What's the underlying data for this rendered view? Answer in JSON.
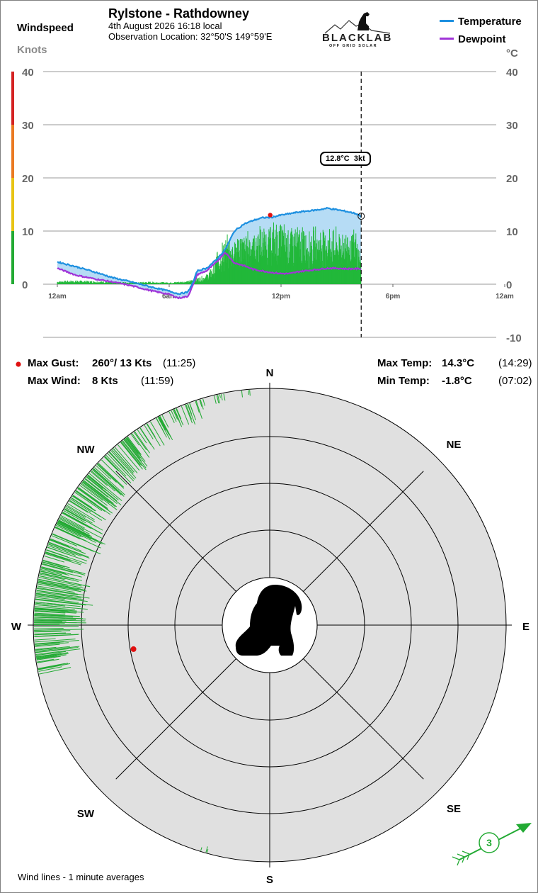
{
  "header": {
    "windspeed_label": "Windspeed",
    "units_label": "Knots",
    "station": "Rylstone - Rathdowney",
    "datetime": "4th August 2026  16:18 local",
    "location": "Observation Location: 32°50'S 149°59'E",
    "logo_text": "BLACKLAB",
    "logo_sub": "OFF GRID SOLAR",
    "celsius_label": "°C"
  },
  "legend": {
    "temperature": "Temperature",
    "dewpoint": "Dewpoint",
    "temperature_color": "#1e90e0",
    "dewpoint_color": "#a035d8"
  },
  "tooltip": "12.8°C  3kt",
  "stats": {
    "max_gust_label": "Max Gust:",
    "max_gust_value": "260°/ 13 Kts",
    "max_gust_time": "(11:25)",
    "max_wind_label": "Max Wind:",
    "max_wind_value": "8 Kts",
    "max_wind_time": "(11:59)",
    "max_temp_label": "Max Temp:",
    "max_temp_value": "14.3°C",
    "max_temp_time": "(14:29)",
    "min_temp_label": "Min Temp:",
    "min_temp_value": "-1.8°C",
    "min_temp_time": "(07:02)"
  },
  "compass": {
    "labels": [
      "N",
      "NE",
      "E",
      "SE",
      "S",
      "SW",
      "W",
      "NW"
    ],
    "current_speed": "3",
    "current_direction_deg": 240,
    "footnote": "Wind lines - 1 minute averages"
  },
  "chart_data": {
    "type": "line",
    "x_labels": [
      "12am",
      "6am",
      "12pm",
      "6pm",
      "12am"
    ],
    "x_hours": [
      0,
      6,
      12,
      18,
      24
    ],
    "wind_axis": {
      "ticks": [
        0,
        10,
        20,
        30,
        40
      ],
      "ylim": [
        0,
        40
      ]
    },
    "temp_axis": {
      "ticks": [
        -10,
        0,
        10,
        20,
        30,
        40
      ],
      "ylim": [
        -10,
        40
      ]
    },
    "current_time_hours": 16.3,
    "series": [
      {
        "name": "Temperature",
        "x": [
          0,
          1,
          2,
          3,
          4,
          5,
          6,
          6.5,
          7,
          7.3,
          7.5,
          8,
          8.5,
          9,
          9.5,
          10,
          10.5,
          11,
          11.5,
          12,
          12.5,
          13,
          14,
          14.5,
          15,
          15.5,
          16,
          16.3
        ],
        "y": [
          4.2,
          3.3,
          2.3,
          1.2,
          0.4,
          -0.5,
          -1.3,
          -1.8,
          -1.5,
          0.5,
          2.5,
          3.0,
          4.5,
          6.5,
          10.0,
          11.3,
          12.0,
          12.5,
          12.6,
          13.0,
          13.3,
          13.6,
          14.0,
          14.3,
          14.0,
          13.7,
          13.3,
          12.8
        ]
      },
      {
        "name": "Dewpoint",
        "x": [
          0,
          1,
          2,
          3,
          4,
          5,
          6,
          6.5,
          7,
          7.3,
          7.5,
          8,
          8.5,
          9,
          9.5,
          10,
          10.5,
          11,
          11.5,
          12,
          12.5,
          13,
          14,
          14.5,
          15,
          15.5,
          16,
          16.3
        ],
        "y": [
          3.0,
          1.7,
          1.0,
          0.4,
          -0.3,
          -1.2,
          -1.9,
          -2.6,
          -2.3,
          0.0,
          1.8,
          2.5,
          4.0,
          6.0,
          4.0,
          3.5,
          2.8,
          2.5,
          2.2,
          2.0,
          2.0,
          2.4,
          2.8,
          3.0,
          3.0,
          2.9,
          2.9,
          2.9
        ]
      },
      {
        "name": "Wind speed (knots)",
        "x": [
          0,
          1,
          2,
          3,
          4,
          5,
          6,
          7,
          8,
          8.5,
          9,
          9.5,
          10,
          10.5,
          11,
          11.5,
          12,
          12.5,
          13,
          13.5,
          14,
          14.5,
          15,
          15.5,
          16,
          16.3
        ],
        "y": [
          0.5,
          0.6,
          0.5,
          0.4,
          0.3,
          0.4,
          0.3,
          0.5,
          1.5,
          3.5,
          5.5,
          6.0,
          6.5,
          7.0,
          7.3,
          7.8,
          8.0,
          7.6,
          7.5,
          7.0,
          7.2,
          7.4,
          6.8,
          7.0,
          6.5,
          3.0
        ]
      }
    ],
    "max_gust_point": {
      "x": 11.42,
      "y": 13
    },
    "wind_rose": {
      "directions_deg": [
        260,
        265,
        270,
        275,
        280,
        285,
        290,
        295,
        300,
        305,
        310,
        315,
        320,
        325,
        330,
        335,
        340,
        345,
        350,
        355,
        195
      ],
      "speeds_knots": [
        5,
        6,
        7,
        8,
        7,
        6,
        6,
        7,
        6,
        6,
        6,
        5,
        5,
        4,
        4,
        3,
        3,
        2,
        1,
        1,
        1
      ]
    }
  }
}
